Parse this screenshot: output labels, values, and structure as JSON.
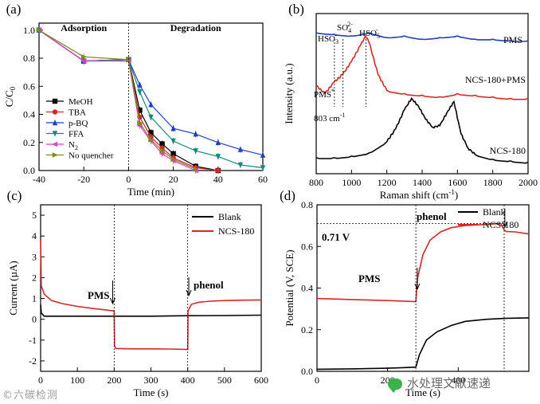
{
  "watermarks": {
    "left": "©六碳检测",
    "right": "水处理文献速递"
  },
  "chart_data": [
    {
      "panel": "(a)",
      "type": "line",
      "xlabel": "Time (min)",
      "ylabel": "C/C0",
      "xlim": [
        -40,
        60
      ],
      "ylim": [
        0,
        1.05
      ],
      "xticks": [
        -40,
        -20,
        0,
        20,
        40,
        60
      ],
      "yticks": [
        0.0,
        0.2,
        0.4,
        0.6,
        0.8,
        1.0
      ],
      "annotations": [
        "Adsorption",
        "Degradation"
      ],
      "legend_placement": "lower-left",
      "series": [
        {
          "name": "MeOH",
          "color": "#000000",
          "marker": "square",
          "x": [
            -40,
            -20,
            0,
            5,
            10,
            15,
            20,
            30,
            40
          ],
          "y": [
            1.0,
            0.78,
            0.79,
            0.43,
            0.27,
            0.19,
            0.12,
            0.03,
            0.0
          ]
        },
        {
          "name": "TBA",
          "color": "#d62728",
          "marker": "circle",
          "x": [
            -40,
            -20,
            0,
            5,
            10,
            15,
            20,
            30,
            40
          ],
          "y": [
            1.0,
            0.78,
            0.79,
            0.38,
            0.24,
            0.16,
            0.09,
            0.02,
            0.0
          ]
        },
        {
          "name": "p-BQ",
          "color": "#1f3fbf",
          "marker": "triangle-up",
          "x": [
            -40,
            -20,
            0,
            5,
            10,
            20,
            30,
            40,
            50,
            60
          ],
          "y": [
            1.0,
            0.78,
            0.79,
            0.61,
            0.47,
            0.3,
            0.26,
            0.2,
            0.15,
            0.11
          ]
        },
        {
          "name": "FFA",
          "color": "#138a7a",
          "marker": "triangle-down",
          "x": [
            -40,
            -20,
            0,
            5,
            10,
            20,
            30,
            40,
            50,
            60
          ],
          "y": [
            1.0,
            0.78,
            0.79,
            0.56,
            0.38,
            0.21,
            0.14,
            0.1,
            0.04,
            0.02
          ]
        },
        {
          "name": "N2",
          "color": "#e040c8",
          "marker": "triangle-left",
          "x": [
            -40,
            -20,
            0,
            5,
            10,
            15,
            20,
            30
          ],
          "y": [
            1.0,
            0.78,
            0.78,
            0.32,
            0.21,
            0.12,
            0.07,
            0.0
          ]
        },
        {
          "name": "No quencher",
          "color": "#7d8a1e",
          "marker": "triangle-right",
          "x": [
            -40,
            -20,
            0,
            5,
            10,
            15,
            20,
            30
          ],
          "y": [
            1.0,
            0.81,
            0.79,
            0.34,
            0.22,
            0.14,
            0.08,
            0.01
          ]
        }
      ]
    },
    {
      "panel": "(b)",
      "type": "line",
      "xlabel": "Raman shift (cm-1)",
      "ylabel": "Intensity (a.u.)",
      "xlim": [
        800,
        2000
      ],
      "xticks": [
        800,
        1000,
        1200,
        1400,
        1600,
        1800,
        2000
      ],
      "yticks": [],
      "annotations": [
        "HSO3-",
        "SO4 2-",
        "HSO5-",
        "PMS*",
        "803 cm-1"
      ],
      "series": [
        {
          "name": "PMS",
          "color": "#1f3fbf",
          "x": [
            800,
            900,
            1000,
            1100,
            1200,
            1300,
            1400,
            1500,
            1600,
            1700,
            1800,
            1900,
            2000
          ],
          "y": [
            0.88,
            0.87,
            0.86,
            0.88,
            0.85,
            0.86,
            0.84,
            0.85,
            0.86,
            0.84,
            0.84,
            0.83,
            0.83
          ]
        },
        {
          "name": "NCS-180+PMS",
          "color": "#d62728",
          "x": [
            800,
            850,
            900,
            950,
            1000,
            1050,
            1080,
            1100,
            1150,
            1200,
            1300,
            1400,
            1500,
            1600,
            1700,
            1800,
            1900,
            2000
          ],
          "y": [
            0.55,
            0.5,
            0.57,
            0.62,
            0.7,
            0.8,
            0.86,
            0.82,
            0.62,
            0.52,
            0.5,
            0.49,
            0.48,
            0.5,
            0.49,
            0.48,
            0.47,
            0.47
          ]
        },
        {
          "name": "NCS-180",
          "color": "#000000",
          "x": [
            800,
            900,
            1000,
            1100,
            1200,
            1250,
            1300,
            1340,
            1380,
            1420,
            1460,
            1500,
            1540,
            1580,
            1620,
            1660,
            1700,
            1800,
            1900,
            2000
          ],
          "y": [
            0.1,
            0.1,
            0.11,
            0.13,
            0.2,
            0.28,
            0.4,
            0.47,
            0.42,
            0.34,
            0.29,
            0.3,
            0.38,
            0.45,
            0.25,
            0.16,
            0.12,
            0.09,
            0.08,
            0.07
          ]
        }
      ]
    },
    {
      "panel": "(c)",
      "type": "line",
      "xlabel": "Time (s)",
      "ylabel": "Current (µA)",
      "xlim": [
        0,
        600
      ],
      "ylim": [
        -2.5,
        5.5
      ],
      "xticks": [
        0,
        100,
        200,
        300,
        400,
        500,
        600
      ],
      "yticks": [
        -2,
        -1,
        0,
        1,
        2,
        3,
        4,
        5
      ],
      "annotations": [
        "PMS",
        "phenol"
      ],
      "legend_placement": "top-right",
      "series": [
        {
          "name": "Blank",
          "color": "#000000",
          "x": [
            0,
            2,
            10,
            50,
            100,
            200,
            300,
            400,
            500,
            600
          ],
          "y": [
            0.7,
            0.3,
            0.15,
            0.15,
            0.15,
            0.15,
            0.15,
            0.17,
            0.18,
            0.2
          ]
        },
        {
          "name": "NCS-180",
          "color": "#d62728",
          "x": [
            0,
            2,
            10,
            30,
            60,
            100,
            150,
            200,
            201,
            205,
            250,
            300,
            350,
            400,
            401,
            410,
            430,
            460,
            500,
            550,
            600
          ],
          "y": [
            3.8,
            1.6,
            1.2,
            0.9,
            0.75,
            0.62,
            0.5,
            0.4,
            -1.3,
            -1.4,
            -1.42,
            -1.42,
            -1.43,
            -1.45,
            0.4,
            0.72,
            0.82,
            0.87,
            0.9,
            0.92,
            0.93
          ]
        }
      ]
    },
    {
      "panel": "(d)",
      "type": "line",
      "xlabel": "Time (s)",
      "ylabel": "Potential (V, SCE)",
      "xlim": [
        0,
        600
      ],
      "ylim": [
        0,
        0.8
      ],
      "xticks": [
        0,
        200,
        400
      ],
      "yticks": [
        0.0,
        0.2,
        0.4,
        0.6,
        0.8
      ],
      "annotations": [
        "PMS",
        "phenol",
        "0.71 V"
      ],
      "legend_placement": "top-right",
      "series": [
        {
          "name": "Blank",
          "color": "#000000",
          "x": [
            0,
            100,
            200,
            280,
            290,
            310,
            340,
            380,
            420,
            480,
            540,
            600
          ],
          "y": [
            0.01,
            0.012,
            0.015,
            0.02,
            0.08,
            0.15,
            0.19,
            0.22,
            0.24,
            0.25,
            0.255,
            0.257
          ]
        },
        {
          "name": "NCS-180",
          "color": "#d62728",
          "x": [
            0,
            100,
            200,
            280,
            285,
            300,
            320,
            350,
            380,
            420,
            470,
            520,
            530,
            535,
            560,
            600
          ],
          "y": [
            0.35,
            0.345,
            0.34,
            0.335,
            0.45,
            0.56,
            0.63,
            0.67,
            0.69,
            0.7,
            0.705,
            0.71,
            0.68,
            0.672,
            0.67,
            0.66
          ]
        }
      ]
    }
  ]
}
